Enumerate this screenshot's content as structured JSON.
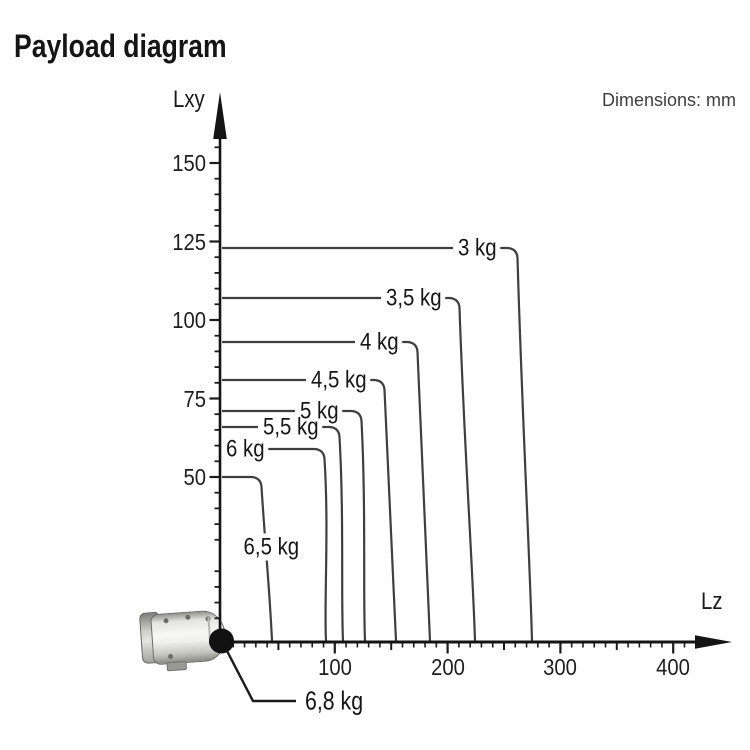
{
  "page": {
    "title": "Payload diagram",
    "dimensions_note": "Dimensions: mm"
  },
  "chart_data": {
    "type": "line",
    "title": "Payload diagram",
    "xlabel": "Lz",
    "ylabel": "Lxy",
    "units": "mm",
    "x_ticks": [
      "100",
      "200",
      "300",
      "400"
    ],
    "y_ticks": [
      "150",
      "125",
      "100",
      "75",
      "50"
    ],
    "x_tick_values": [
      100,
      200,
      300,
      400
    ],
    "y_tick_values": [
      150,
      125,
      100,
      75,
      50
    ],
    "xlim": [
      0,
      430
    ],
    "ylim": [
      0,
      170
    ],
    "grid": false,
    "legend": "labels-on-curves",
    "curves": [
      {
        "label": "3 kg",
        "payload_kg": 3.0,
        "lxy_max_mm": 123,
        "lz_max_mm": 275
      },
      {
        "label": "3,5 kg",
        "payload_kg": 3.5,
        "lxy_max_mm": 107,
        "lz_max_mm": 224
      },
      {
        "label": "4 kg",
        "payload_kg": 4.0,
        "lxy_max_mm": 93,
        "lz_max_mm": 184
      },
      {
        "label": "4,5 kg",
        "payload_kg": 4.5,
        "lxy_max_mm": 81,
        "lz_max_mm": 154
      },
      {
        "label": "5 kg",
        "payload_kg": 5.0,
        "lxy_max_mm": 71,
        "lz_max_mm": 127
      },
      {
        "label": "5,5 kg",
        "payload_kg": 5.5,
        "lxy_max_mm": 66,
        "lz_max_mm": 107
      },
      {
        "label": "6 kg",
        "payload_kg": 6.0,
        "lxy_max_mm": 59,
        "lz_max_mm": 92
      },
      {
        "label": "6,5 kg",
        "payload_kg": 6.5,
        "lxy_max_mm": 50,
        "lz_max_mm": 44
      }
    ],
    "origin_point": {
      "label": "6,8 kg",
      "payload_kg": 6.8,
      "lxy_mm": 0,
      "lz_mm": 0
    }
  }
}
